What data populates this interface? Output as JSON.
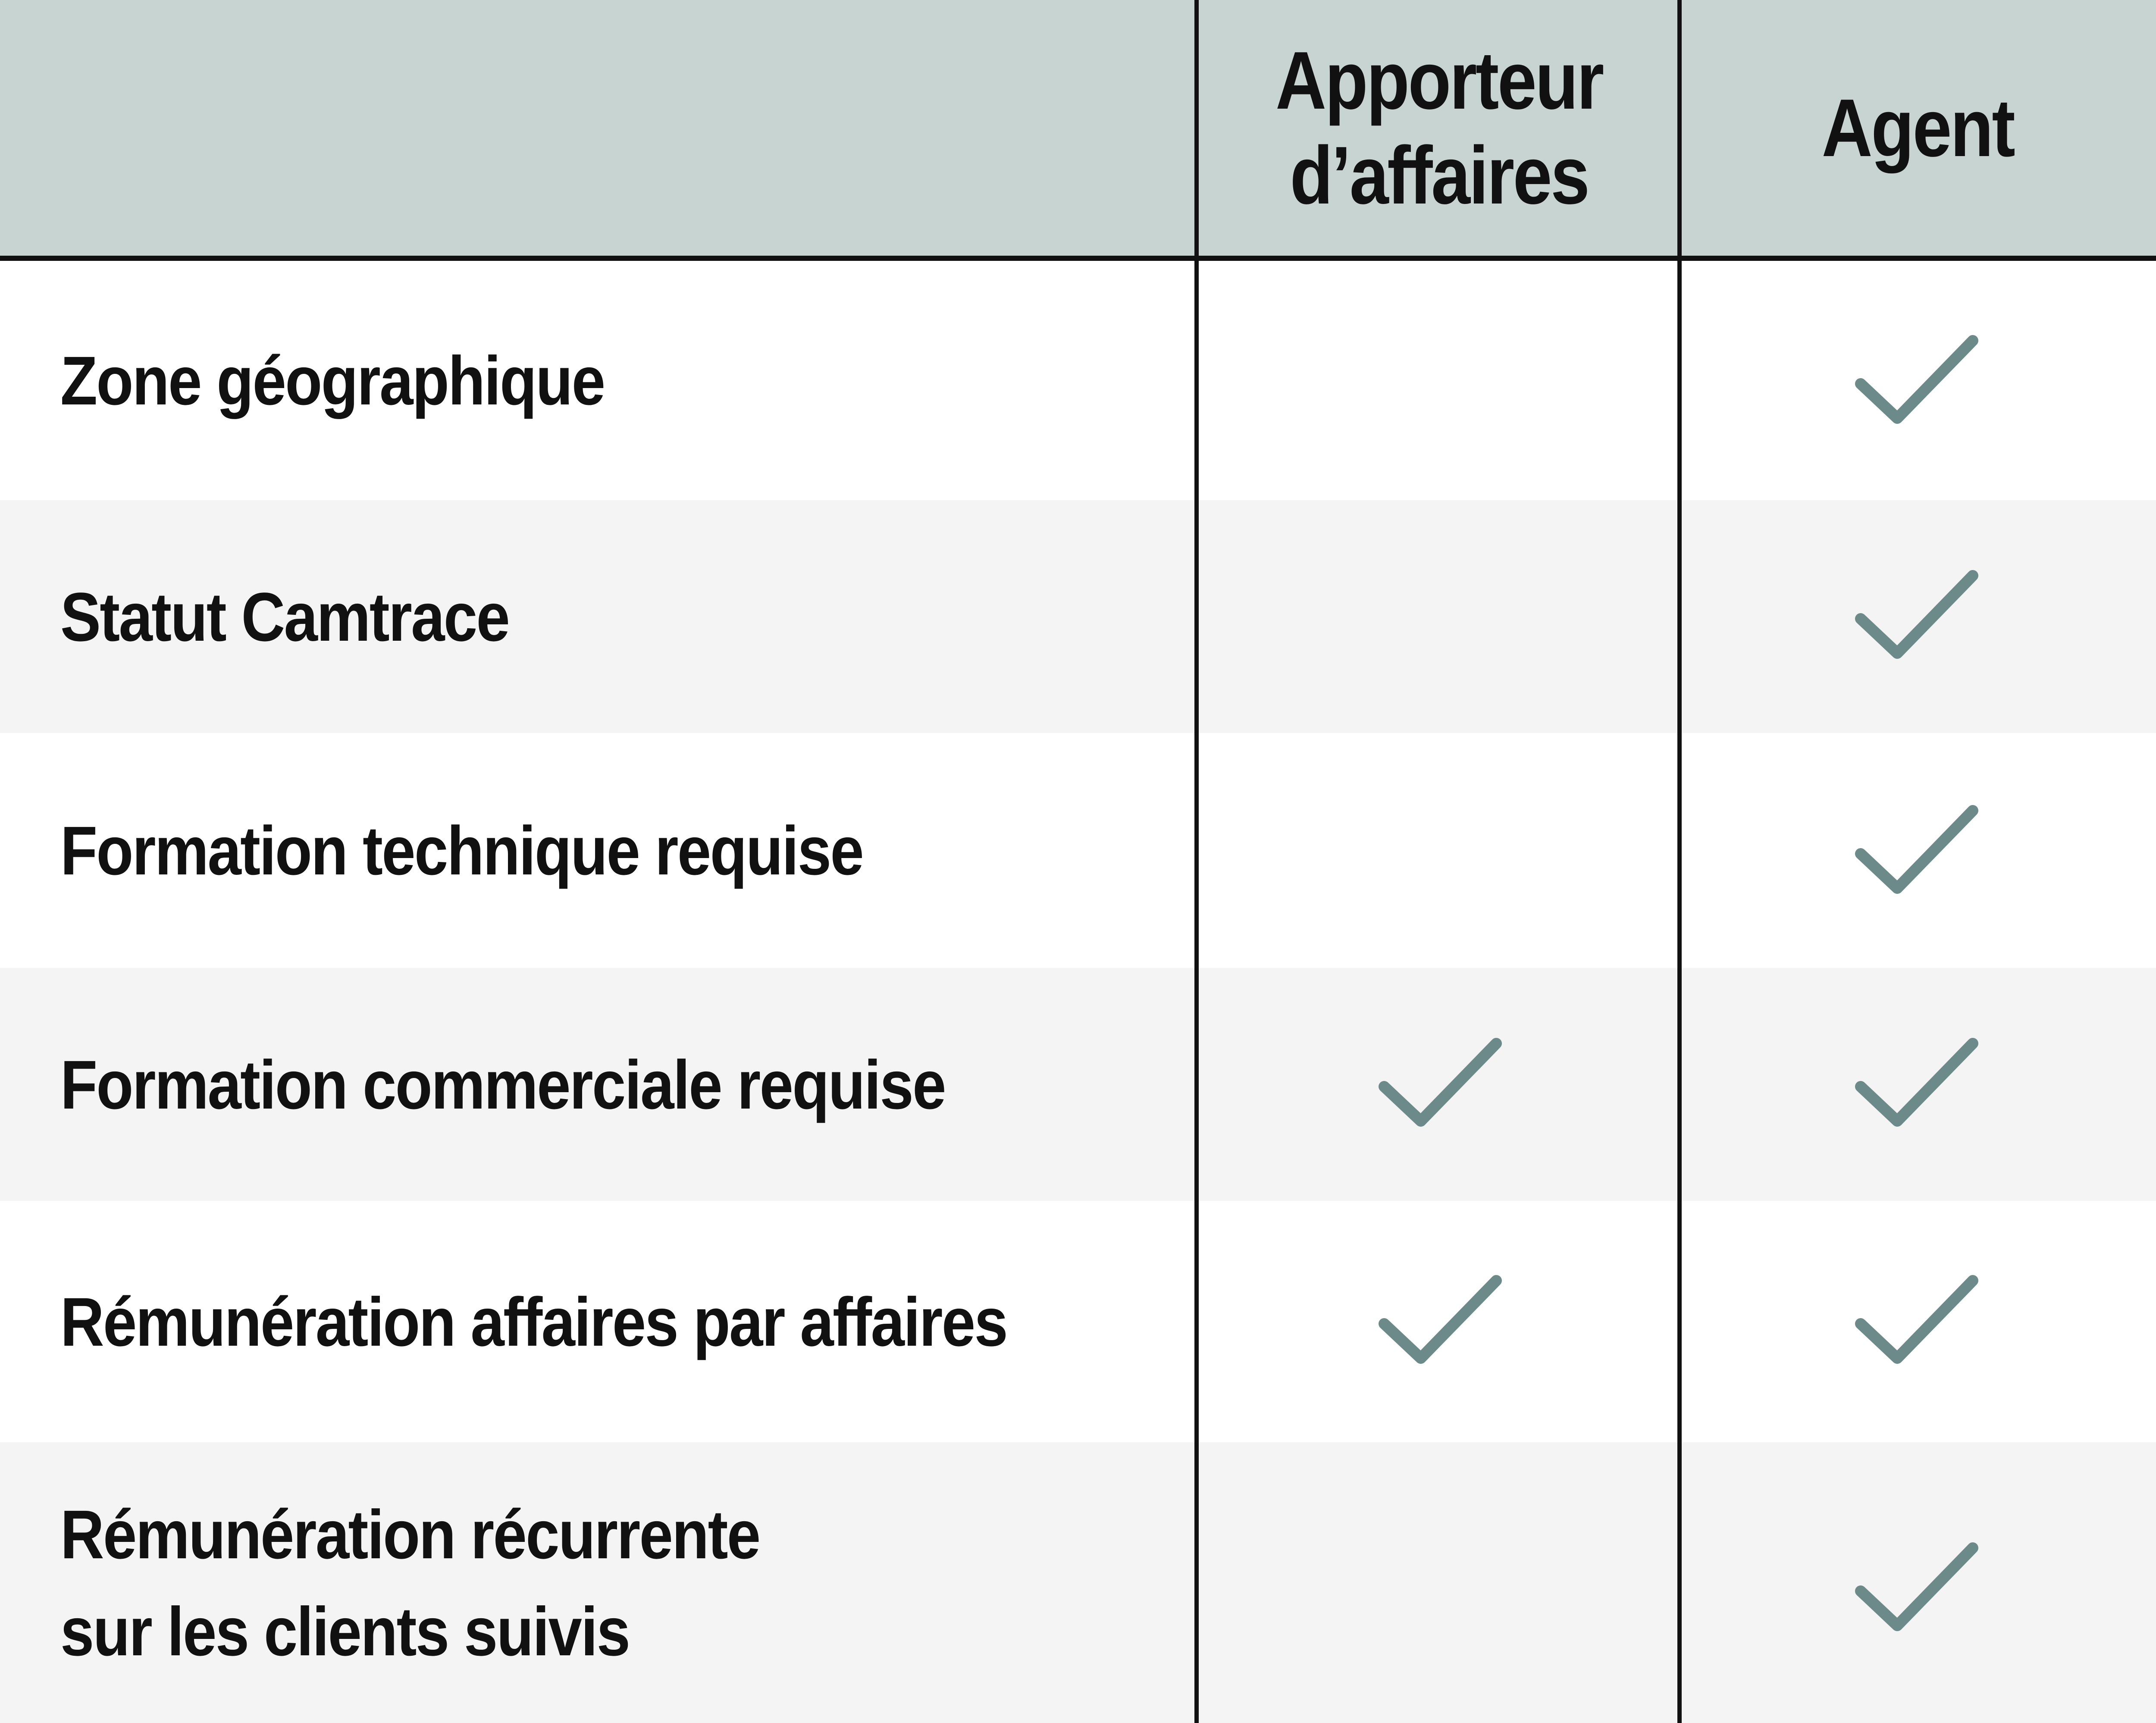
{
  "colors": {
    "header_background": "#c7d4d2",
    "check_color": "#6b8a89",
    "row_alternate_background": "#f4f4f4",
    "border_color": "#111111"
  },
  "table": {
    "corner": "",
    "columns": [
      {
        "lines": [
          "Apporteur",
          "d’affaires"
        ]
      },
      {
        "lines": [
          "Agent"
        ]
      }
    ],
    "rows": [
      {
        "label_lines": [
          "Zone géographique"
        ],
        "apporteur": false,
        "agent": true
      },
      {
        "label_lines": [
          "Statut Camtrace"
        ],
        "apporteur": false,
        "agent": true
      },
      {
        "label_lines": [
          "Formation technique requise"
        ],
        "apporteur": false,
        "agent": true
      },
      {
        "label_lines": [
          "Formation commerciale requise"
        ],
        "apporteur": true,
        "agent": true
      },
      {
        "label_lines": [
          "Rémunération affaires par affaires"
        ],
        "apporteur": true,
        "agent": true
      },
      {
        "label_lines": [
          "Rémunération récurrente",
          "sur les clients suivis"
        ],
        "apporteur": false,
        "agent": true
      }
    ]
  }
}
